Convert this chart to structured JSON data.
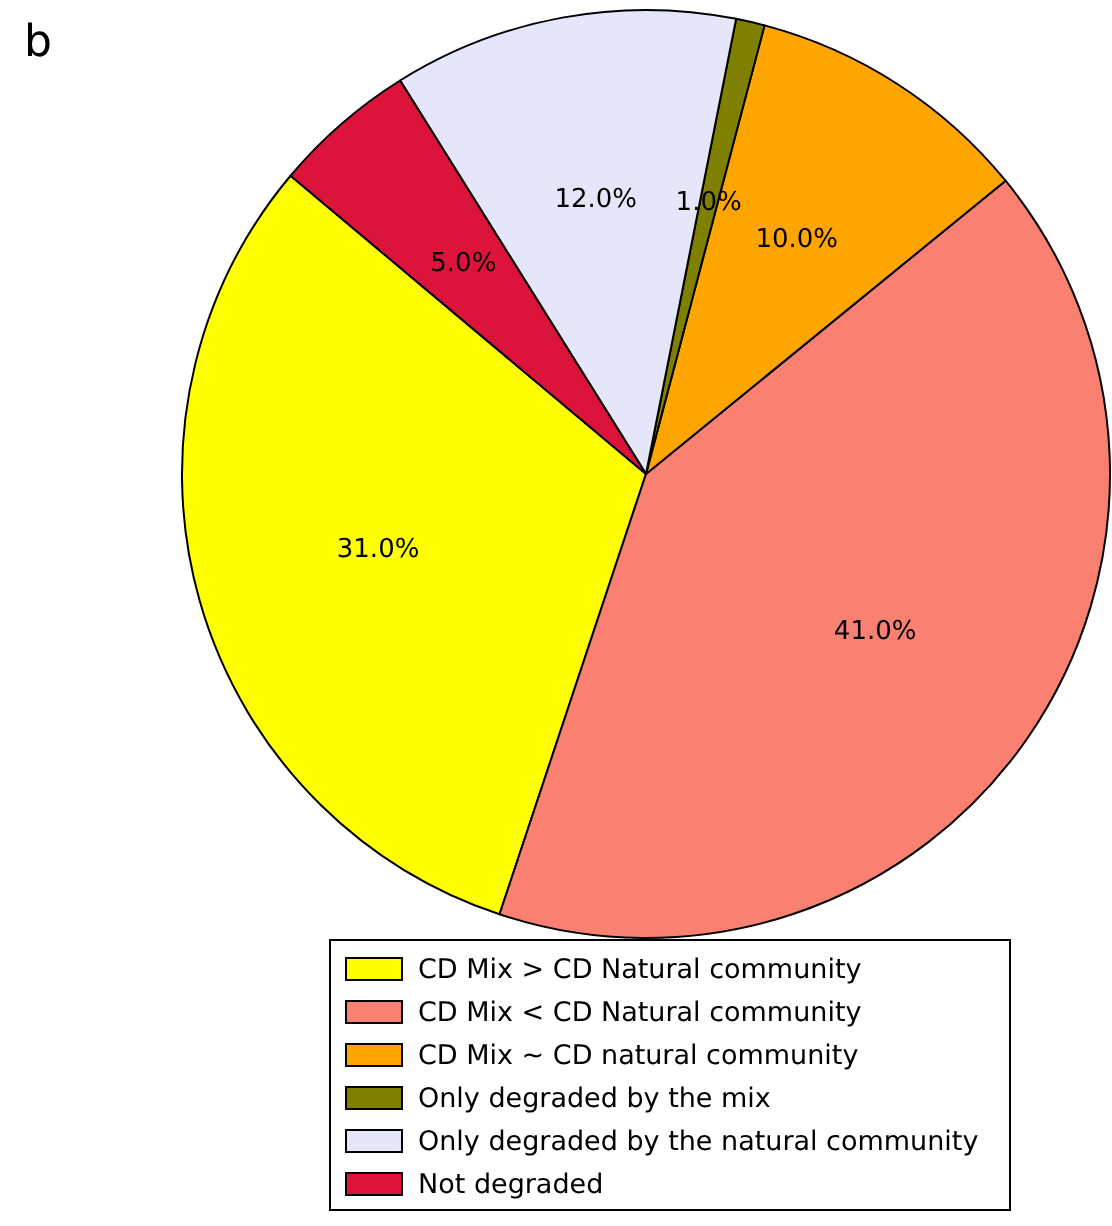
{
  "chart_data": {
    "type": "pie",
    "title": "b",
    "categories": [
      "CD Mix > CD Natural community",
      "CD Mix < CD Natural community",
      "CD Mix ~ CD natural community",
      "Only degraded by the mix",
      "Only degraded by the natural community",
      "Not degraded"
    ],
    "values": [
      31,
      41,
      10,
      1,
      12,
      5
    ],
    "colors": [
      "#ffff00",
      "#fa8072",
      "#ffa500",
      "#808000",
      "#e6e6fa",
      "#dc143c"
    ],
    "value_labels": [
      "31.0%",
      "41.0%",
      "10.0%",
      "1.0%",
      "12.0%",
      "5.0%"
    ],
    "legend": "bottom"
  }
}
